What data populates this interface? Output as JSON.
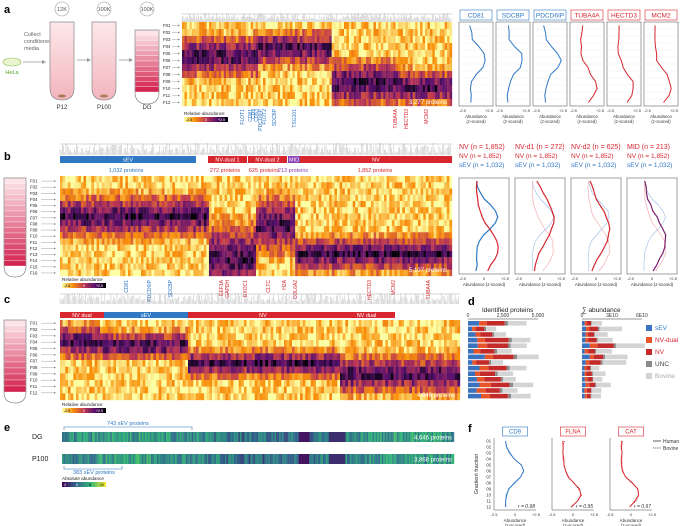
{
  "panels": {
    "a": {
      "letter": "a",
      "speeds": [
        "12K",
        "100K",
        "100K"
      ],
      "collect_note": "Collect\nconditioned\nmedia",
      "cell_label": "HeLa",
      "tubes": [
        "P12",
        "P100",
        "DG"
      ],
      "fractions": [
        "F01",
        "F02",
        "F03",
        "F04",
        "F05",
        "F06",
        "F07",
        "F08",
        "F09",
        "F10",
        "F11",
        "F12"
      ],
      "proteins_count": "3,277 proteins",
      "legend_title": "Relative abundance",
      "legend_ticks": [
        "-2.5",
        "0",
        "+2.5"
      ],
      "marker_labels": [
        {
          "text": "FLOT1",
          "color": "#2f78c4"
        },
        {
          "text": "CD81",
          "color": "#2f78c4"
        },
        {
          "text": "CD9",
          "color": "#2f78c4"
        },
        {
          "text": "CD63",
          "color": "#2f78c4"
        },
        {
          "text": "PDCD6IP",
          "color": "#2f78c4"
        },
        {
          "text": "FLOT2",
          "color": "#2f78c4"
        },
        {
          "text": "SDCBP",
          "color": "#2f78c4"
        },
        {
          "text": "TSG101",
          "color": "#2f78c4"
        },
        {
          "text": "TUBA4A",
          "color": "#d7262e"
        },
        {
          "text": "HECTD3",
          "color": "#d7262e"
        },
        {
          "text": "MCM2",
          "color": "#d7262e"
        }
      ],
      "profiles": [
        {
          "label": "CD81",
          "color": "#2f78c4"
        },
        {
          "label": "SDCBP",
          "color": "#2f78c4"
        },
        {
          "label": "PDCD6IP",
          "color": "#2f78c4"
        },
        {
          "label": "TUBA4A",
          "color": "#d7262e"
        },
        {
          "label": "HECTD3",
          "color": "#d7262e"
        },
        {
          "label": "MCM2",
          "color": "#d7262e"
        }
      ],
      "profile_axis": [
        "-2.5",
        "+2.5"
      ],
      "profile_xlabel": "Abundance",
      "profile_xlabel2": "(z-scored)"
    },
    "b": {
      "letter": "b",
      "fractions": [
        "F01",
        "F02",
        "F03",
        "F04",
        "F05",
        "F06",
        "F07",
        "F08",
        "F09",
        "F10",
        "F11",
        "F12",
        "F13",
        "F14",
        "F15",
        "F16"
      ],
      "clusters": [
        {
          "label": "sEV",
          "count": "1,032 proteins",
          "color": "#2f78c4"
        },
        {
          "label": "NV-dual 1",
          "count": "272 proteins",
          "color": "#d7262e"
        },
        {
          "label": "NV-dual 2",
          "count": "625 proteins",
          "color": "#d7262e"
        },
        {
          "label": "MID",
          "count": "213 proteins",
          "color": "#8a3fb0"
        },
        {
          "label": "NV",
          "count": "1,852 proteins",
          "color": "#d7262e"
        }
      ],
      "proteins_count": "5,107 proteins",
      "legend_title": "Relative abundance",
      "legend_ticks": [
        "-2.5",
        "0",
        "+2.5"
      ],
      "marker_labels": [
        {
          "text": "CD81",
          "color": "#2f78c4"
        },
        {
          "text": "PDCD6IP",
          "color": "#2f78c4"
        },
        {
          "text": "SDCBP",
          "color": "#2f78c4"
        },
        {
          "text": "EEF1A",
          "color": "#d7262e"
        },
        {
          "text": "GAPDH",
          "color": "#d7262e"
        },
        {
          "text": "EXOC1",
          "color": "#d7262e"
        },
        {
          "text": "CLTC",
          "color": "#d7262e"
        },
        {
          "text": "H2A",
          "color": "#d7262e"
        },
        {
          "text": "COL6A2",
          "color": "#d7262e"
        },
        {
          "text": "HECTD3",
          "color": "#d7262e"
        },
        {
          "text": "MCM2",
          "color": "#d7262e"
        },
        {
          "text": "TUBA4A",
          "color": "#d7262e"
        }
      ],
      "profile_groups": [
        {
          "title": "NV",
          "n": "(n = 1,852)",
          "sub": "NV",
          "subn": "(n = 1,852)",
          "ref": "sEV",
          "refn": "(n = 1,032)"
        },
        {
          "title": "NV-d1",
          "n": "(n = 272)",
          "sub": "NV",
          "subn": "(n = 1,852)",
          "ref": "sEV",
          "refn": "(n = 1,032)"
        },
        {
          "title": "NV-d2",
          "n": "(n = 625)",
          "sub": "NV",
          "subn": "(n = 1,852)",
          "ref": "sEV",
          "refn": "(n = 1,032)"
        },
        {
          "title": "MID",
          "n": "(n = 213)",
          "sub": "NV",
          "subn": "(n = 1,852)",
          "ref": "sEV",
          "refn": "(n = 1,032)"
        }
      ],
      "profile_axis": [
        "-2.5",
        "0",
        "+2.5"
      ],
      "profile_xlabel": "Abundance (z-scored)"
    },
    "c": {
      "letter": "c",
      "fractions": [
        "F01",
        "F02",
        "F03",
        "F04",
        "F05",
        "F06",
        "F07",
        "F08",
        "F09",
        "F10",
        "F11",
        "F12"
      ],
      "clusters": [
        {
          "label": "NV dual",
          "color": "#d7262e"
        },
        {
          "label": "sEV",
          "color": "#2f78c4"
        },
        {
          "label": "NV",
          "color": "#d7262e"
        },
        {
          "label": "NV dual",
          "color": "#d7262e"
        }
      ],
      "proteins_count": "4,646 proteins",
      "legend_title": "Relative abundance",
      "legend_ticks": [
        "-2.5",
        "0",
        "+2.5"
      ]
    },
    "d": {
      "letter": "d",
      "left_title": "Identified proteins",
      "left_ticks": [
        "0",
        "2,500",
        "5,000"
      ],
      "right_title": "∑ abundance",
      "right_ticks": [
        "0",
        "3E10",
        "6E10"
      ],
      "legend": [
        {
          "label": "sEV",
          "color": "#3a72c0",
          "text_color": "#2f78c4"
        },
        {
          "label": "NV-dual",
          "color": "#e8552a",
          "text_color": "#d7262e"
        },
        {
          "label": "NV",
          "color": "#c32a2a",
          "text_color": "#d7262e"
        },
        {
          "label": "UNC",
          "color": "#8a8a8a",
          "text_color": "#444444"
        },
        {
          "label": "Bovine",
          "color": "#d4d4d4",
          "text_color": "#aaaaaa"
        }
      ]
    },
    "e": {
      "letter": "e",
      "rows": [
        {
          "label": "DG",
          "proteins": "4,646 proteins",
          "sev": "743 sEV proteins"
        },
        {
          "label": "P100",
          "proteins": "3,868 proteins",
          "sev": "383 sEV proteins"
        }
      ],
      "legend_title": "Absolute abundance",
      "legend_ticks": [
        "4",
        "6",
        "8",
        "10"
      ]
    },
    "f": {
      "letter": "f",
      "ylabel": "Gradient fraction",
      "fractions": [
        "01",
        "02",
        "03",
        "04",
        "05",
        "06",
        "07",
        "08",
        "09",
        "10",
        "11",
        "12"
      ],
      "profiles": [
        {
          "label": "CD9",
          "color": "#2f78c4",
          "r": "r = 0.98"
        },
        {
          "label": "FLNA",
          "color": "#d7262e",
          "r": "r = 0.95"
        },
        {
          "label": "CAT",
          "color": "#d7262e",
          "r": "r = 0.97"
        }
      ],
      "legend": [
        {
          "label": "Human",
          "style": "solid"
        },
        {
          "label": "Bovine",
          "style": "dotted"
        }
      ],
      "axis": [
        "-2.5",
        "0",
        "+2.5"
      ],
      "xlabel": "Abundance",
      "xlabel2": "(z-scored)"
    }
  }
}
